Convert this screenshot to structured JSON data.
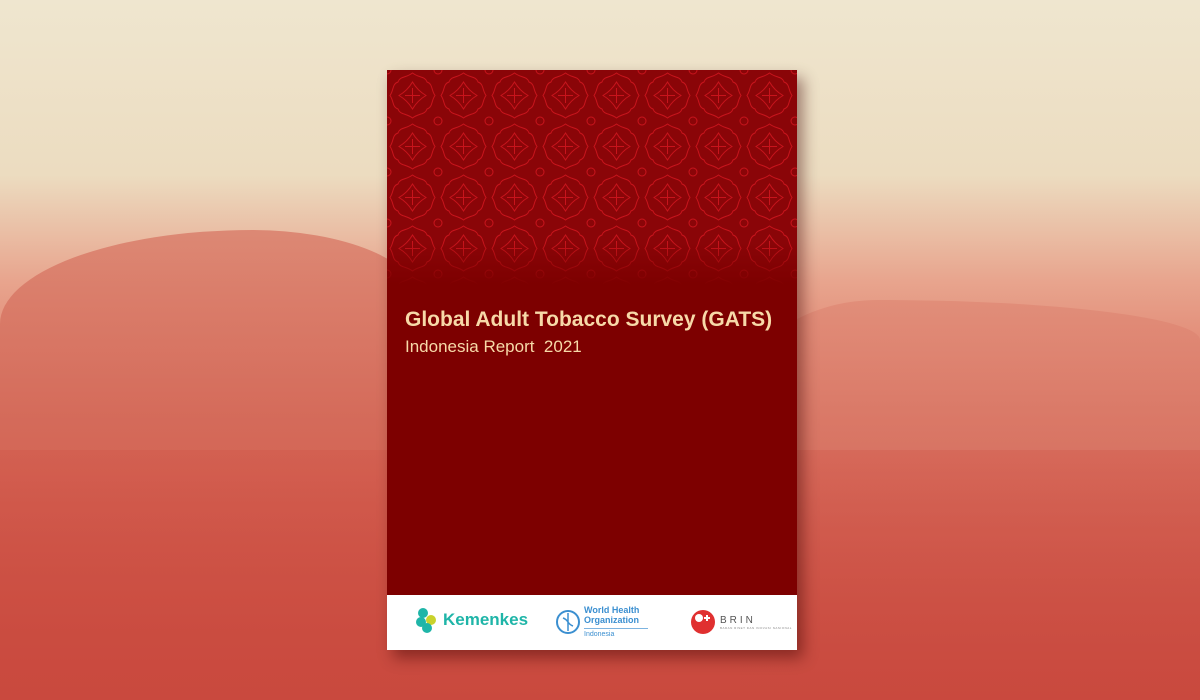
{
  "cover": {
    "title": "Global Adult Tobacco Survey (GATS)",
    "subtitle": "Indonesia Report  2021",
    "colors": {
      "background": "#7d0000",
      "title": "#f7d9a8",
      "pattern": "#c8141c"
    }
  },
  "logos": {
    "kemenkes": "Kemenkes",
    "who_name": "World Health Organization",
    "who_country": "Indonesia",
    "brin": "BRIN",
    "brin_sub": "BADAN RISET DAN INOVASI NASIONAL"
  },
  "background": {
    "description_icon": "tea-plantation-photo"
  }
}
